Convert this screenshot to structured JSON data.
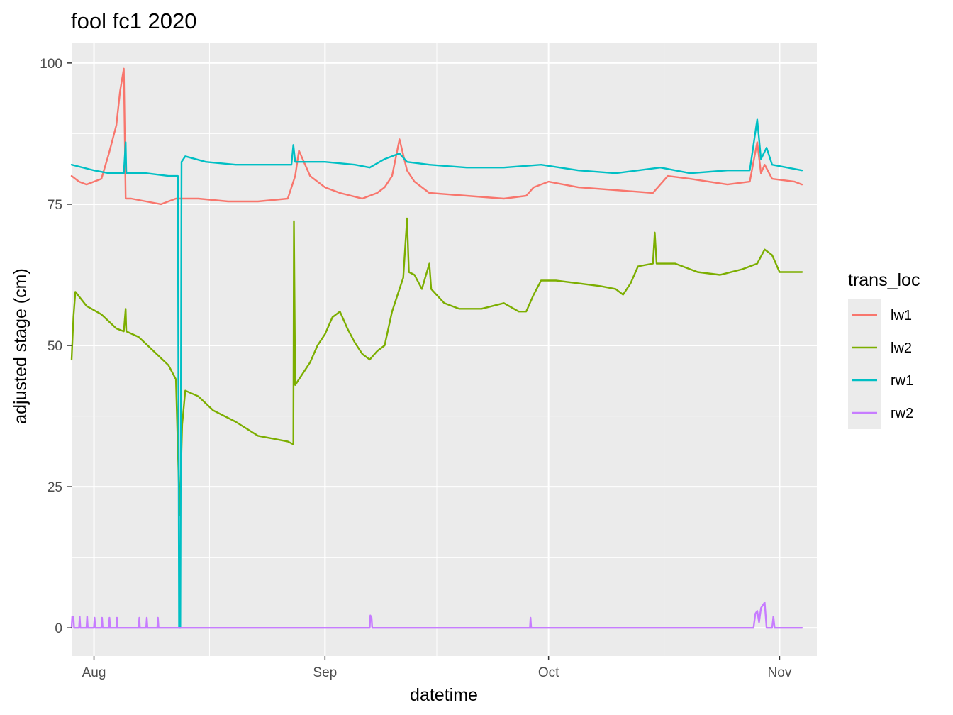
{
  "chart_data": {
    "type": "line",
    "title": "fool fc1 2020",
    "xlabel": "datetime",
    "ylabel": "adjusted stage (cm)",
    "x_domain": [
      "2020-07-29",
      "2020-11-06"
    ],
    "ylim": [
      -5,
      103.5
    ],
    "x_ticks": [
      {
        "date": "2020-08-01",
        "label": "Aug"
      },
      {
        "date": "2020-09-01",
        "label": "Sep"
      },
      {
        "date": "2020-10-01",
        "label": "Oct"
      },
      {
        "date": "2020-11-01",
        "label": "Nov"
      }
    ],
    "y_ticks": [
      0,
      25,
      50,
      75,
      100
    ],
    "grid": true,
    "legend": {
      "title": "trans_loc",
      "position": "right"
    },
    "series": [
      {
        "name": "lw1",
        "color": "#F8766D",
        "points": [
          [
            "2020-07-29T00:00",
            80.0
          ],
          [
            "2020-07-30T00:00",
            79.0
          ],
          [
            "2020-07-31T00:00",
            78.5
          ],
          [
            "2020-08-01T00:00",
            79.0
          ],
          [
            "2020-08-02T00:00",
            79.5
          ],
          [
            "2020-08-03T00:00",
            84.0
          ],
          [
            "2020-08-04T00:00",
            89.0
          ],
          [
            "2020-08-04T12:00",
            95.0
          ],
          [
            "2020-08-05T00:00",
            99.0
          ],
          [
            "2020-08-05T06:00",
            76.0
          ],
          [
            "2020-08-06T00:00",
            76.0
          ],
          [
            "2020-08-08T00:00",
            75.5
          ],
          [
            "2020-08-10T00:00",
            75.0
          ],
          [
            "2020-08-12T00:00",
            76.0
          ],
          [
            "2020-08-15T00:00",
            76.0
          ],
          [
            "2020-08-19T00:00",
            75.5
          ],
          [
            "2020-08-23T00:00",
            75.5
          ],
          [
            "2020-08-27T00:00",
            76.0
          ],
          [
            "2020-08-28T00:00",
            80.0
          ],
          [
            "2020-08-28T12:00",
            84.5
          ],
          [
            "2020-08-30T00:00",
            80.0
          ],
          [
            "2020-09-01T00:00",
            78.0
          ],
          [
            "2020-09-03T00:00",
            77.0
          ],
          [
            "2020-09-06T00:00",
            76.0
          ],
          [
            "2020-09-08T00:00",
            77.0
          ],
          [
            "2020-09-09T00:00",
            78.0
          ],
          [
            "2020-09-10T00:00",
            80.0
          ],
          [
            "2020-09-11T00:00",
            86.5
          ],
          [
            "2020-09-12T00:00",
            81.0
          ],
          [
            "2020-09-13T00:00",
            79.0
          ],
          [
            "2020-09-15T00:00",
            77.0
          ],
          [
            "2020-09-20T00:00",
            76.5
          ],
          [
            "2020-09-25T00:00",
            76.0
          ],
          [
            "2020-09-28T00:00",
            76.5
          ],
          [
            "2020-09-29T00:00",
            78.0
          ],
          [
            "2020-10-01T00:00",
            79.0
          ],
          [
            "2020-10-05T00:00",
            78.0
          ],
          [
            "2020-10-10T00:00",
            77.5
          ],
          [
            "2020-10-15T00:00",
            77.0
          ],
          [
            "2020-10-17T00:00",
            80.0
          ],
          [
            "2020-10-20T00:00",
            79.5
          ],
          [
            "2020-10-25T00:00",
            78.5
          ],
          [
            "2020-10-28T00:00",
            79.0
          ],
          [
            "2020-10-29T00:00",
            86.0
          ],
          [
            "2020-10-29T12:00",
            80.5
          ],
          [
            "2020-10-30T00:00",
            82.0
          ],
          [
            "2020-10-31T00:00",
            79.5
          ],
          [
            "2020-11-03T00:00",
            79.0
          ],
          [
            "2020-11-04T00:00",
            78.5
          ]
        ]
      },
      {
        "name": "lw2",
        "color": "#7CAE00",
        "points": [
          [
            "2020-07-29T00:00",
            47.5
          ],
          [
            "2020-07-29T06:00",
            55.0
          ],
          [
            "2020-07-29T12:00",
            59.5
          ],
          [
            "2020-07-31T00:00",
            57.0
          ],
          [
            "2020-08-02T00:00",
            55.5
          ],
          [
            "2020-08-04T00:00",
            53.0
          ],
          [
            "2020-08-05T00:00",
            52.5
          ],
          [
            "2020-08-05T06:00",
            56.5
          ],
          [
            "2020-08-05T08:00",
            52.5
          ],
          [
            "2020-08-07T00:00",
            51.5
          ],
          [
            "2020-08-09T00:00",
            49.0
          ],
          [
            "2020-08-11T00:00",
            46.5
          ],
          [
            "2020-08-12T00:00",
            44.0
          ],
          [
            "2020-08-12T12:00",
            20.0
          ],
          [
            "2020-08-12T20:00",
            36.0
          ],
          [
            "2020-08-13T06:00",
            42.0
          ],
          [
            "2020-08-15T00:00",
            41.0
          ],
          [
            "2020-08-17T00:00",
            38.5
          ],
          [
            "2020-08-20T00:00",
            36.5
          ],
          [
            "2020-08-23T00:00",
            34.0
          ],
          [
            "2020-08-27T00:00",
            33.0
          ],
          [
            "2020-08-27T18:00",
            32.5
          ],
          [
            "2020-08-27T20:00",
            72.0
          ],
          [
            "2020-08-28T00:00",
            43.0
          ],
          [
            "2020-08-30T00:00",
            47.0
          ],
          [
            "2020-08-31T00:00",
            50.0
          ],
          [
            "2020-09-01T00:00",
            52.0
          ],
          [
            "2020-09-02T00:00",
            55.0
          ],
          [
            "2020-09-03T00:00",
            56.0
          ],
          [
            "2020-09-04T00:00",
            53.0
          ],
          [
            "2020-09-05T00:00",
            50.5
          ],
          [
            "2020-09-06T00:00",
            48.5
          ],
          [
            "2020-09-07T00:00",
            47.5
          ],
          [
            "2020-09-08T00:00",
            49.0
          ],
          [
            "2020-09-09T00:00",
            50.0
          ],
          [
            "2020-09-10T00:00",
            56.0
          ],
          [
            "2020-09-11T00:00",
            60.0
          ],
          [
            "2020-09-11T12:00",
            62.0
          ],
          [
            "2020-09-12T00:00",
            72.5
          ],
          [
            "2020-09-12T06:00",
            63.0
          ],
          [
            "2020-09-13T00:00",
            62.5
          ],
          [
            "2020-09-14T00:00",
            60.0
          ],
          [
            "2020-09-15T00:00",
            64.5
          ],
          [
            "2020-09-15T06:00",
            60.0
          ],
          [
            "2020-09-17T00:00",
            57.5
          ],
          [
            "2020-09-19T00:00",
            56.5
          ],
          [
            "2020-09-22T00:00",
            56.5
          ],
          [
            "2020-09-25T00:00",
            57.5
          ],
          [
            "2020-09-27T00:00",
            56.0
          ],
          [
            "2020-09-28T00:00",
            56.0
          ],
          [
            "2020-09-29T00:00",
            59.0
          ],
          [
            "2020-09-30T00:00",
            61.5
          ],
          [
            "2020-10-02T00:00",
            61.5
          ],
          [
            "2020-10-05T00:00",
            61.0
          ],
          [
            "2020-10-08T00:00",
            60.5
          ],
          [
            "2020-10-10T00:00",
            60.0
          ],
          [
            "2020-10-11T00:00",
            59.0
          ],
          [
            "2020-10-12T00:00",
            61.0
          ],
          [
            "2020-10-13T00:00",
            64.0
          ],
          [
            "2020-10-15T00:00",
            64.5
          ],
          [
            "2020-10-15T06:00",
            70.0
          ],
          [
            "2020-10-15T12:00",
            64.5
          ],
          [
            "2020-10-18T00:00",
            64.5
          ],
          [
            "2020-10-21T00:00",
            63.0
          ],
          [
            "2020-10-24T00:00",
            62.5
          ],
          [
            "2020-10-27T00:00",
            63.5
          ],
          [
            "2020-10-29T00:00",
            64.5
          ],
          [
            "2020-10-30T00:00",
            67.0
          ],
          [
            "2020-10-31T00:00",
            66.0
          ],
          [
            "2020-11-01T00:00",
            63.0
          ],
          [
            "2020-11-04T00:00",
            63.0
          ]
        ]
      },
      {
        "name": "rw1",
        "color": "#00BFC4",
        "points": [
          [
            "2020-07-29T00:00",
            82.0
          ],
          [
            "2020-08-01T00:00",
            81.0
          ],
          [
            "2020-08-03T00:00",
            80.5
          ],
          [
            "2020-08-05T00:00",
            80.5
          ],
          [
            "2020-08-05T06:00",
            86.0
          ],
          [
            "2020-08-05T08:00",
            80.5
          ],
          [
            "2020-08-08T00:00",
            80.5
          ],
          [
            "2020-08-11T00:00",
            80.0
          ],
          [
            "2020-08-12T06:00",
            80.0
          ],
          [
            "2020-08-12T10:00",
            0.0
          ],
          [
            "2020-08-12T14:00",
            0.0
          ],
          [
            "2020-08-12T18:00",
            82.5
          ],
          [
            "2020-08-13T06:00",
            83.5
          ],
          [
            "2020-08-16T00:00",
            82.5
          ],
          [
            "2020-08-20T00:00",
            82.0
          ],
          [
            "2020-08-25T00:00",
            82.0
          ],
          [
            "2020-08-27T12:00",
            82.0
          ],
          [
            "2020-08-27T18:00",
            85.5
          ],
          [
            "2020-08-28T00:00",
            82.5
          ],
          [
            "2020-09-01T00:00",
            82.5
          ],
          [
            "2020-09-05T00:00",
            82.0
          ],
          [
            "2020-09-07T00:00",
            81.5
          ],
          [
            "2020-09-09T00:00",
            83.0
          ],
          [
            "2020-09-11T00:00",
            84.0
          ],
          [
            "2020-09-12T00:00",
            82.5
          ],
          [
            "2020-09-15T00:00",
            82.0
          ],
          [
            "2020-09-20T00:00",
            81.5
          ],
          [
            "2020-09-25T00:00",
            81.5
          ],
          [
            "2020-09-30T00:00",
            82.0
          ],
          [
            "2020-10-05T00:00",
            81.0
          ],
          [
            "2020-10-10T00:00",
            80.5
          ],
          [
            "2020-10-13T00:00",
            81.0
          ],
          [
            "2020-10-16T00:00",
            81.5
          ],
          [
            "2020-10-20T00:00",
            80.5
          ],
          [
            "2020-10-25T00:00",
            81.0
          ],
          [
            "2020-10-28T00:00",
            81.0
          ],
          [
            "2020-10-29T00:00",
            90.0
          ],
          [
            "2020-10-29T12:00",
            83.0
          ],
          [
            "2020-10-30T06:00",
            85.0
          ],
          [
            "2020-10-31T00:00",
            82.0
          ],
          [
            "2020-11-04T00:00",
            81.0
          ]
        ]
      },
      {
        "name": "rw2",
        "color": "#C77CFF",
        "points": [
          [
            "2020-07-29T00:00",
            0.0
          ],
          [
            "2020-07-29T02:00",
            2.0
          ],
          [
            "2020-07-29T06:00",
            2.0
          ],
          [
            "2020-07-29T08:00",
            0.0
          ],
          [
            "2020-07-30T00:00",
            0.0
          ],
          [
            "2020-07-30T02:00",
            2.0
          ],
          [
            "2020-07-30T04:00",
            0.0
          ],
          [
            "2020-07-31T00:00",
            0.0
          ],
          [
            "2020-07-31T02:00",
            2.0
          ],
          [
            "2020-07-31T04:00",
            0.0
          ],
          [
            "2020-08-01T00:00",
            0.0
          ],
          [
            "2020-08-01T02:00",
            1.8
          ],
          [
            "2020-08-01T04:00",
            0.0
          ],
          [
            "2020-08-02T00:00",
            0.0
          ],
          [
            "2020-08-02T02:00",
            1.8
          ],
          [
            "2020-08-02T04:00",
            0.0
          ],
          [
            "2020-08-03T00:00",
            0.0
          ],
          [
            "2020-08-03T02:00",
            1.8
          ],
          [
            "2020-08-03T04:00",
            0.0
          ],
          [
            "2020-08-04T00:00",
            0.0
          ],
          [
            "2020-08-04T02:00",
            1.8
          ],
          [
            "2020-08-04T04:00",
            0.0
          ],
          [
            "2020-08-07T00:00",
            0.0
          ],
          [
            "2020-08-07T02:00",
            1.8
          ],
          [
            "2020-08-07T04:00",
            0.0
          ],
          [
            "2020-08-08T00:00",
            0.0
          ],
          [
            "2020-08-08T02:00",
            1.8
          ],
          [
            "2020-08-08T04:00",
            0.0
          ],
          [
            "2020-08-09T12:00",
            0.0
          ],
          [
            "2020-08-09T14:00",
            1.8
          ],
          [
            "2020-08-09T16:00",
            0.0
          ],
          [
            "2020-09-07T00:00",
            0.0
          ],
          [
            "2020-09-07T02:00",
            2.2
          ],
          [
            "2020-09-07T06:00",
            1.8
          ],
          [
            "2020-09-07T08:00",
            0.0
          ],
          [
            "2020-09-28T12:00",
            0.0
          ],
          [
            "2020-09-28T14:00",
            1.8
          ],
          [
            "2020-09-28T16:00",
            0.0
          ],
          [
            "2020-10-28T12:00",
            0.0
          ],
          [
            "2020-10-28T18:00",
            2.5
          ],
          [
            "2020-10-29T00:00",
            3.0
          ],
          [
            "2020-10-29T06:00",
            1.0
          ],
          [
            "2020-10-29T12:00",
            3.5
          ],
          [
            "2020-10-30T00:00",
            4.5
          ],
          [
            "2020-10-30T06:00",
            0.0
          ],
          [
            "2020-10-31T00:00",
            0.0
          ],
          [
            "2020-10-31T04:00",
            2.0
          ],
          [
            "2020-10-31T08:00",
            0.0
          ],
          [
            "2020-11-04T00:00",
            0.0
          ]
        ]
      }
    ]
  }
}
